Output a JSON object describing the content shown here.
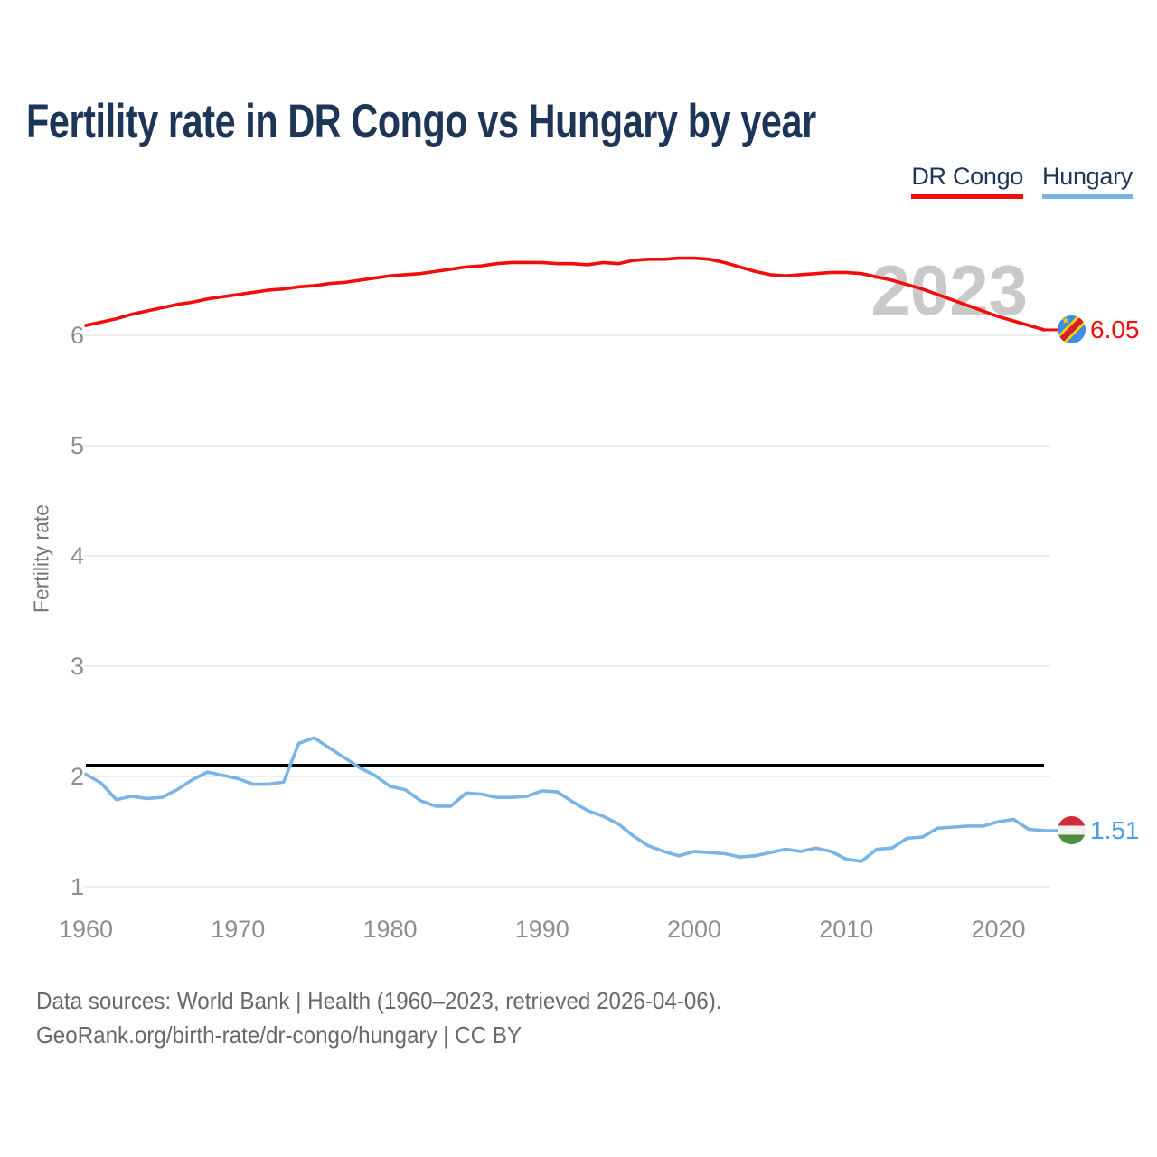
{
  "header": {
    "title": "Fertility rate in DR Congo vs Hungary by year"
  },
  "legend": {
    "items": [
      {
        "label": "DR Congo",
        "color": "#f20d0d"
      },
      {
        "label": "Hungary",
        "color": "#79b4e6"
      }
    ]
  },
  "watermark": {
    "text": "2023"
  },
  "axes": {
    "y_label": "Fertility rate"
  },
  "footer": {
    "line1": "Data sources: World Bank | Health (1960–2023, retrieved 2026-04-06).",
    "line2": "GeoRank.org/birth-rate/dr-congo/hungary | CC BY"
  },
  "colors": {
    "title_navy": "#1d3557",
    "grid": "#ececec",
    "tick_text": "#8e8e8e",
    "watermark_gray": "#c9c9c9",
    "reference_line": "#000000"
  },
  "flags": {
    "dr_congo": {
      "blue": "#3d8ce5",
      "yellow": "#f2d000",
      "red": "#d5202e"
    },
    "hungary": {
      "red": "#d22b3e",
      "white": "#f1f1f1",
      "green": "#4e8c40"
    }
  },
  "chart_data": {
    "type": "line",
    "title": "Fertility rate in DR Congo vs Hungary by year",
    "xlabel": "",
    "ylabel": "Fertility rate",
    "x_range": [
      1960,
      2023
    ],
    "ylim": [
      0.95,
      7.0
    ],
    "x_ticks": [
      1960,
      1970,
      1980,
      1990,
      2000,
      2010,
      2020
    ],
    "y_ticks": [
      1,
      2,
      3,
      4,
      5,
      6
    ],
    "grid": "horizontal",
    "legend_position": "top-right",
    "reference_line": {
      "value": 2.1,
      "color": "#000000"
    },
    "years": [
      1960,
      1961,
      1962,
      1963,
      1964,
      1965,
      1966,
      1967,
      1968,
      1969,
      1970,
      1971,
      1972,
      1973,
      1974,
      1975,
      1976,
      1977,
      1978,
      1979,
      1980,
      1981,
      1982,
      1983,
      1984,
      1985,
      1986,
      1987,
      1988,
      1989,
      1990,
      1991,
      1992,
      1993,
      1994,
      1995,
      1996,
      1997,
      1998,
      1999,
      2000,
      2001,
      2002,
      2003,
      2004,
      2005,
      2006,
      2007,
      2008,
      2009,
      2010,
      2011,
      2012,
      2013,
      2014,
      2015,
      2016,
      2017,
      2018,
      2019,
      2020,
      2021,
      2022,
      2023
    ],
    "series": [
      {
        "name": "DR Congo",
        "color": "#f20d0d",
        "end_label": "6.05",
        "end_label_color": "#f20d0d",
        "flag": "dr_congo",
        "values": [
          6.09,
          6.12,
          6.15,
          6.19,
          6.22,
          6.25,
          6.28,
          6.3,
          6.33,
          6.35,
          6.37,
          6.39,
          6.41,
          6.42,
          6.44,
          6.45,
          6.47,
          6.48,
          6.5,
          6.52,
          6.54,
          6.55,
          6.56,
          6.58,
          6.6,
          6.62,
          6.63,
          6.65,
          6.66,
          6.66,
          6.66,
          6.65,
          6.65,
          6.64,
          6.66,
          6.65,
          6.68,
          6.69,
          6.69,
          6.7,
          6.7,
          6.69,
          6.66,
          6.62,
          6.58,
          6.55,
          6.54,
          6.55,
          6.56,
          6.57,
          6.57,
          6.56,
          6.53,
          6.5,
          6.46,
          6.42,
          6.37,
          6.32,
          6.27,
          6.22,
          6.17,
          6.13,
          6.09,
          6.05
        ]
      },
      {
        "name": "Hungary",
        "color": "#79b4e6",
        "end_label": "1.51",
        "end_label_color": "#4a9de0",
        "flag": "hungary",
        "values": [
          2.02,
          1.94,
          1.79,
          1.82,
          1.8,
          1.81,
          1.88,
          1.97,
          2.04,
          2.01,
          1.98,
          1.93,
          1.93,
          1.95,
          2.3,
          2.35,
          2.26,
          2.17,
          2.08,
          2.01,
          1.91,
          1.88,
          1.78,
          1.73,
          1.73,
          1.85,
          1.84,
          1.81,
          1.81,
          1.82,
          1.87,
          1.86,
          1.77,
          1.69,
          1.64,
          1.57,
          1.46,
          1.37,
          1.32,
          1.28,
          1.32,
          1.31,
          1.3,
          1.27,
          1.28,
          1.31,
          1.34,
          1.32,
          1.35,
          1.32,
          1.25,
          1.23,
          1.34,
          1.35,
          1.44,
          1.45,
          1.53,
          1.54,
          1.55,
          1.55,
          1.59,
          1.61,
          1.52,
          1.51
        ]
      }
    ]
  }
}
